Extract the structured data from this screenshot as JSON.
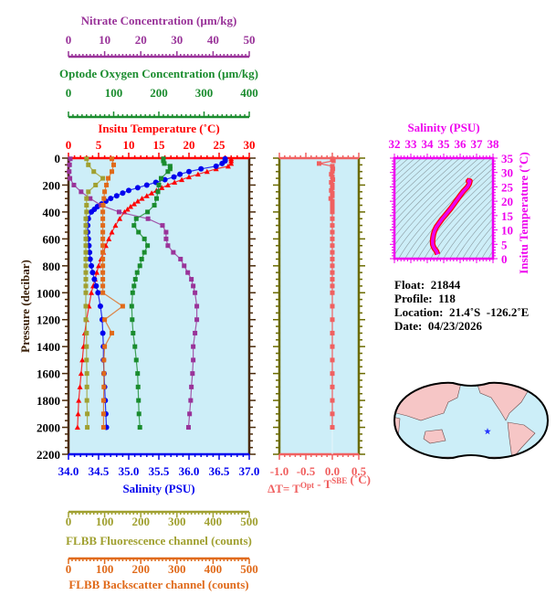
{
  "chart_data": [
    {
      "type": "line",
      "title": "Argo float profile",
      "ylabel": "Pressure (decibar)",
      "ylim": [
        2200,
        0
      ],
      "yticks": [
        0,
        200,
        400,
        600,
        800,
        1000,
        1200,
        1400,
        1600,
        1800,
        2000,
        2200
      ],
      "axes": {
        "nitrate": {
          "label": "Nitrate Concentration (µm/kg)",
          "range": [
            0,
            50
          ],
          "ticks": [
            0,
            10,
            20,
            30,
            40,
            50
          ],
          "color": "#993399",
          "position": "top"
        },
        "oxygen": {
          "label": "Optode Oxygen Concentration (µm/kg)",
          "range": [
            0,
            400
          ],
          "ticks": [
            0,
            100,
            200,
            300,
            400
          ],
          "color": "#1a8c2e",
          "position": "top"
        },
        "temperature": {
          "label": "Insitu Temperature (˚C)",
          "range": [
            0,
            30
          ],
          "ticks": [
            0,
            5,
            10,
            15,
            20,
            25,
            30
          ],
          "color": "#ff0000",
          "position": "top"
        },
        "salinity": {
          "label": "Salinity (PSU)",
          "range": [
            34.0,
            37.0
          ],
          "ticks": [
            "34.0",
            "34.5",
            "35.0",
            "35.5",
            "36.0",
            "36.5",
            "37.0"
          ],
          "color": "#0000ee",
          "position": "bottom"
        },
        "fluorescence": {
          "label": "FLBB Fluorescence channel (counts)",
          "range": [
            0,
            500
          ],
          "ticks": [
            0,
            100,
            200,
            300,
            400,
            500
          ],
          "color": "#a0a030",
          "position": "bottom"
        },
        "backscatter": {
          "label": "FLBB Backscatter channel (counts)",
          "range": [
            0,
            500
          ],
          "ticks": [
            0,
            100,
            200,
            300,
            400,
            500
          ],
          "color": "#e06a1a",
          "position": "bottom"
        }
      },
      "series": [
        {
          "name": "Temperature",
          "axis": "temperature",
          "color": "#ff0000",
          "marker": "triangle",
          "pressure": [
            5,
            20,
            40,
            60,
            80,
            100,
            120,
            140,
            160,
            180,
            200,
            220,
            240,
            260,
            280,
            300,
            320,
            340,
            360,
            380,
            400,
            450,
            500,
            550,
            600,
            650,
            700,
            750,
            800,
            850,
            900,
            950,
            1000,
            1100,
            1200,
            1300,
            1400,
            1500,
            1600,
            1700,
            1800,
            1900,
            2000
          ],
          "values": [
            27.0,
            27.0,
            27.0,
            26.5,
            24.5,
            23.0,
            21.5,
            20.0,
            18.8,
            17.6,
            16.5,
            15.5,
            14.6,
            13.8,
            13.0,
            12.2,
            11.5,
            10.9,
            10.3,
            9.8,
            9.3,
            8.5,
            7.8,
            7.2,
            6.7,
            6.2,
            5.8,
            5.4,
            5.0,
            4.7,
            4.4,
            4.1,
            3.8,
            3.4,
            3.0,
            2.7,
            2.5,
            2.3,
            2.1,
            1.9,
            1.7,
            1.6,
            1.5
          ]
        },
        {
          "name": "Salinity",
          "axis": "salinity",
          "color": "#0000ee",
          "marker": "circle",
          "pressure": [
            5,
            20,
            40,
            60,
            80,
            100,
            120,
            140,
            160,
            180,
            200,
            220,
            240,
            260,
            280,
            300,
            320,
            340,
            360,
            380,
            400,
            450,
            500,
            550,
            600,
            650,
            700,
            750,
            800,
            850,
            900,
            950,
            1000,
            1100,
            1200,
            1300,
            1400,
            1500,
            1600,
            1700,
            1800,
            1900,
            2000
          ],
          "values": [
            36.6,
            36.6,
            36.55,
            36.45,
            36.2,
            36.0,
            35.85,
            35.75,
            35.6,
            35.45,
            35.3,
            35.15,
            35.0,
            34.9,
            34.8,
            34.7,
            34.62,
            34.55,
            34.48,
            34.43,
            34.38,
            34.33,
            34.32,
            34.32,
            34.33,
            34.34,
            34.35,
            34.36,
            34.38,
            34.4,
            34.43,
            34.46,
            34.49,
            34.53,
            34.56,
            34.57,
            34.58,
            34.58,
            34.59,
            34.6,
            34.61,
            34.62,
            34.63
          ]
        },
        {
          "name": "Nitrate",
          "axis": "nitrate",
          "color": "#993399",
          "marker": "square",
          "pressure": [
            5,
            50,
            100,
            150,
            200,
            250,
            300,
            350,
            400,
            450,
            500,
            550,
            600,
            650,
            700,
            750,
            800,
            850,
            900,
            950,
            1000,
            1100,
            1200,
            1300,
            1400,
            1500,
            1600,
            1700,
            1800,
            1900,
            2000
          ],
          "values": [
            0.5,
            0.3,
            0.2,
            0.4,
            1.5,
            3.5,
            6,
            9,
            14,
            22,
            26,
            27,
            27,
            27.5,
            29,
            31,
            32,
            33,
            34,
            34.5,
            35,
            35.5,
            35.5,
            35,
            34.5,
            34.5,
            34.3,
            34,
            33.8,
            33.5,
            33.2
          ]
        },
        {
          "name": "Oxygen",
          "axis": "oxygen",
          "color": "#1a8c2e",
          "marker": "square",
          "pressure": [
            5,
            20,
            40,
            60,
            80,
            100,
            150,
            200,
            250,
            300,
            350,
            400,
            450,
            500,
            550,
            600,
            650,
            700,
            750,
            800,
            850,
            900,
            950,
            1000,
            1100,
            1200,
            1300,
            1400,
            1500,
            1600,
            1700,
            1800,
            1900,
            2000
          ],
          "values": [
            210,
            210,
            212,
            225,
            225,
            220,
            205,
            200,
            198,
            195,
            190,
            175,
            150,
            145,
            155,
            168,
            175,
            168,
            162,
            158,
            152,
            148,
            145,
            142,
            140,
            141,
            143,
            147,
            150,
            153,
            154,
            155,
            156,
            158
          ]
        },
        {
          "name": "FLBB Fluorescence",
          "axis": "fluorescence",
          "color": "#a0a030",
          "marker": "square",
          "pressure": [
            5,
            50,
            100,
            150,
            200,
            250,
            300,
            350,
            400,
            450,
            500,
            550,
            600,
            650,
            700,
            750,
            800,
            850,
            900,
            950,
            1000,
            1100,
            1200,
            1300,
            1400,
            1500,
            1600,
            1700,
            1800,
            1900,
            2000
          ],
          "values": [
            50,
            55,
            70,
            95,
            75,
            55,
            50,
            50,
            50,
            48,
            48,
            48,
            48,
            48,
            48,
            48,
            48,
            48,
            48,
            48,
            48,
            48,
            48,
            50,
            50,
            50,
            51,
            51,
            51,
            52,
            52
          ]
        },
        {
          "name": "FLBB Backscatter",
          "axis": "backscatter",
          "color": "#e06a1a",
          "marker": "square",
          "pressure": [
            5,
            50,
            100,
            150,
            200,
            250,
            300,
            350,
            400,
            450,
            500,
            550,
            600,
            650,
            700,
            750,
            800,
            850,
            900,
            950,
            1000,
            1100,
            1200,
            1300,
            1400,
            1500,
            1600,
            1700,
            1800,
            1900,
            2000
          ],
          "values": [
            120,
            125,
            120,
            110,
            105,
            100,
            98,
            96,
            95,
            95,
            95,
            95,
            95,
            95,
            95,
            95,
            95,
            95,
            95,
            95,
            95,
            150,
            100,
            120,
            100,
            98,
            98,
            98,
            97,
            97,
            97
          ]
        }
      ]
    },
    {
      "type": "line",
      "title": "Temperature difference",
      "xlabel": "ΔT= T^Opt - T^SBE (˚C)",
      "xlim": [
        -1.0,
        0.5
      ],
      "xticks": [
        "-1.0",
        "-0.5",
        "0.0",
        "0.5"
      ],
      "color": "#f06060",
      "series": [
        {
          "name": "dT",
          "pressure": [
            5,
            20,
            40,
            60,
            80,
            100,
            120,
            140,
            160,
            180,
            200,
            220,
            240,
            260,
            280,
            300,
            320,
            340,
            360,
            380,
            400,
            450,
            500,
            550,
            600,
            650,
            700,
            750,
            800,
            850,
            900,
            950,
            1000,
            1100,
            1200,
            1300,
            1400,
            1500,
            1600,
            1700,
            1800,
            1900,
            2000
          ],
          "values": [
            0.0,
            0.02,
            -0.25,
            0.0,
            0.01,
            0.0,
            -0.02,
            0.0,
            0.01,
            -0.02,
            0.0,
            0.0,
            -0.02,
            0.0,
            0.0,
            -0.03,
            0.0,
            0.0,
            0.0,
            0.0,
            0.0,
            0.0,
            0.0,
            0.0,
            0.0,
            0.0,
            0.0,
            0.0,
            0.0,
            0.0,
            0.0,
            0.0,
            0.0,
            0.0,
            0.0,
            0.0,
            0.0,
            0.0,
            0.0,
            0.0,
            0.0,
            0.0,
            0.0
          ]
        }
      ]
    },
    {
      "type": "line",
      "title": "T-S diagram",
      "xlabel": "Salinity (PSU)",
      "ylabel": "Insitu Temperature (˚C)",
      "xlim": [
        32,
        38
      ],
      "ylim": [
        0,
        35
      ],
      "xticks": [
        32,
        33,
        34,
        35,
        36,
        37,
        38
      ],
      "yticks": [
        0,
        5,
        10,
        15,
        20,
        25,
        30,
        35
      ],
      "color": "#ee00ee",
      "series": [
        {
          "name": "T-S",
          "salinity": [
            34.63,
            34.6,
            34.55,
            34.45,
            34.38,
            34.33,
            34.32,
            34.34,
            34.38,
            34.45,
            34.55,
            34.7,
            34.9,
            35.15,
            35.45,
            35.75,
            36.0,
            36.2,
            36.45,
            36.55,
            36.6,
            36.5,
            36.6
          ],
          "temperature": [
            1.5,
            2.0,
            2.7,
            3.4,
            4.1,
            5.0,
            6.2,
            7.2,
            8.5,
            9.8,
            11.0,
            12.2,
            13.8,
            15.5,
            17.6,
            20.0,
            22.0,
            23.5,
            25.0,
            26.0,
            27.0,
            27.0,
            27.5
          ]
        }
      ]
    }
  ],
  "info": {
    "float": "Float:  21844",
    "profile": "Profile:  118",
    "location": "Location:  21.4˚S  -126.2˚E",
    "date": "Date:  04/23/2026"
  },
  "map": {
    "marker_color": "#2233ff",
    "land_color": "#f6c6c6",
    "ocean_color": "#cceef8"
  }
}
